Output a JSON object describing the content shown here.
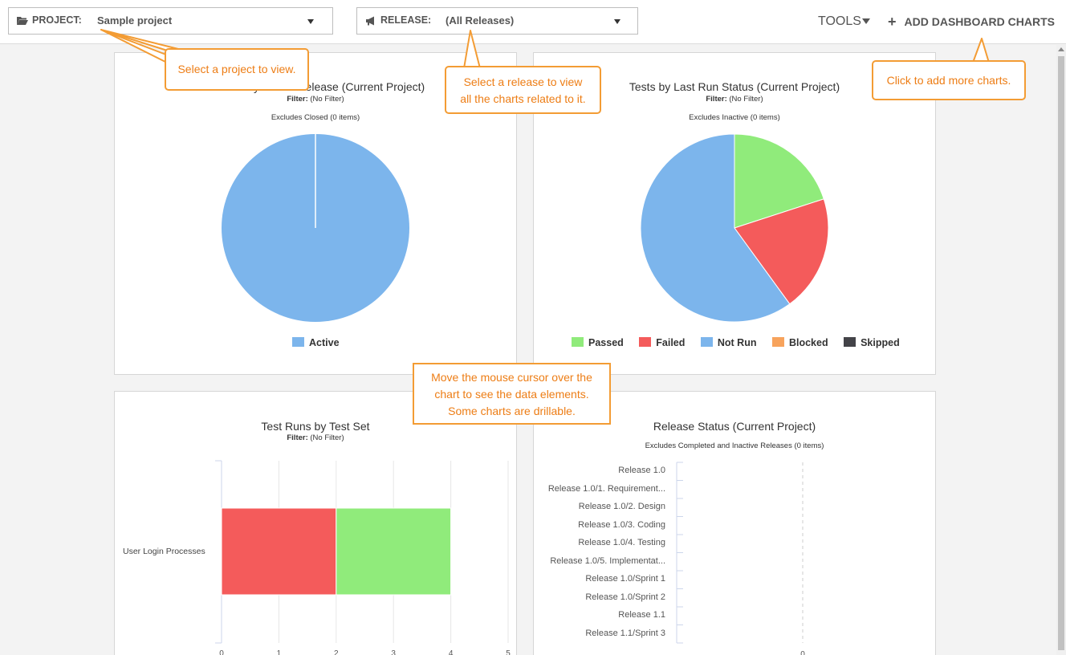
{
  "toolbar": {
    "project_label": "PROJECT:",
    "project_value": "Sample project",
    "release_label": "RELEASE:",
    "release_value": "(All Releases)",
    "tools_label": "TOOLS",
    "add_charts_label": "ADD DASHBOARD CHARTS"
  },
  "callouts": {
    "project": "Select a project to view.",
    "release_line1": "Select a release to view",
    "release_line2": "all the charts related to it.",
    "add_charts": "Click to add more charts.",
    "mouse_line1": "Move the mouse cursor over the",
    "mouse_line2": "chart to see the data elements.",
    "mouse_line3": "Some charts are drillable."
  },
  "panels": {
    "defects": {
      "title": "Defects by Status/Release (Current Project)",
      "filter_label": "Filter:",
      "filter_value": "(No Filter)",
      "note": "Excludes Closed (0 items)"
    },
    "tests": {
      "title": "Tests by Last Run Status (Current Project)",
      "filter_label": "Filter:",
      "filter_value": "(No Filter)",
      "note": "Excludes Inactive (0 items)"
    },
    "test_runs": {
      "title": "Test Runs by Test Set",
      "filter_label": "Filter:",
      "filter_value": "(No Filter)"
    },
    "release_status": {
      "title": "Release Status (Current Project)",
      "note": "Excludes Completed and Inactive Releases (0 items)"
    }
  },
  "colors": {
    "passed": "#90eb7b",
    "failed": "#f45b5b",
    "not_run": "#7cb5ec",
    "blocked": "#f7a35c",
    "skipped": "#434348",
    "accent_orange": "#f39c34"
  },
  "chart_data": [
    {
      "type": "pie",
      "title": "Defects by Status/Release (Current Project)",
      "series": [
        {
          "name": "Active",
          "value": 1,
          "color": "#7cb5ec"
        }
      ],
      "legend": [
        "Active"
      ]
    },
    {
      "type": "pie",
      "title": "Tests by Last Run Status (Current Project)",
      "series": [
        {
          "name": "Passed",
          "value": 2,
          "color": "#90eb7b"
        },
        {
          "name": "Failed",
          "value": 2,
          "color": "#f45b5b"
        },
        {
          "name": "Not Run",
          "value": 6,
          "color": "#7cb5ec"
        },
        {
          "name": "Blocked",
          "value": 0,
          "color": "#f7a35c"
        },
        {
          "name": "Skipped",
          "value": 0,
          "color": "#434348"
        }
      ],
      "legend": [
        "Passed",
        "Failed",
        "Not Run",
        "Blocked",
        "Skipped"
      ]
    },
    {
      "type": "bar",
      "title": "Test Runs by Test Set",
      "categories": [
        "User Login Processes"
      ],
      "series": [
        {
          "color": "#f45b5b",
          "values": [
            2
          ]
        },
        {
          "color": "#90eb7b",
          "values": [
            2
          ]
        }
      ],
      "stacked": true,
      "xlim": [
        0,
        5
      ],
      "ticks": [
        "0",
        "1",
        "2",
        "3",
        "4",
        "5"
      ]
    },
    {
      "type": "bar",
      "title": "Release Status (Current Project)",
      "categories": [
        "Release 1.0",
        "Release 1.0/1. Requirement...",
        "Release 1.0/2. Design",
        "Release 1.0/3. Coding",
        "Release 1.0/4. Testing",
        "Release 1.0/5. Implementat...",
        "Release 1.0/Sprint 1",
        "Release 1.0/Sprint 2",
        "Release 1.1",
        "Release 1.1/Sprint 3"
      ],
      "values": [
        0,
        0,
        0,
        0,
        0,
        0,
        0,
        0,
        0,
        0
      ],
      "ticks": [
        "0"
      ]
    }
  ]
}
